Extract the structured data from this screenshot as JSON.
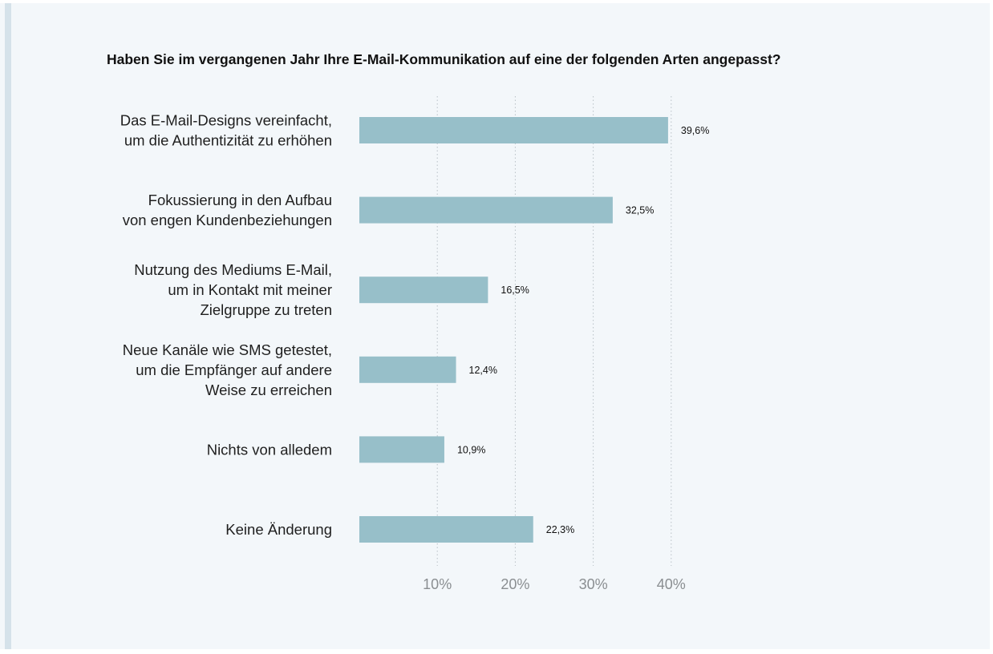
{
  "chart_data": {
    "type": "bar",
    "orientation": "horizontal",
    "title": "Haben Sie im vergangenen Jahr Ihre E-Mail-Kommunikation auf eine der folgenden Arten angepasst?",
    "categories": [
      [
        "Das E-Mail-Designs vereinfacht,",
        "um die Authentizität zu erhöhen"
      ],
      [
        "Fokussierung in den Aufbau",
        "von engen Kundenbeziehungen"
      ],
      [
        "Nutzung des Mediums E-Mail,",
        "um in Kontakt mit meiner",
        "Zielgruppe zu treten"
      ],
      [
        "Neue Kanäle wie SMS getestet,",
        "um die Empfänger auf andere",
        "Weise zu erreichen"
      ],
      [
        "Nichts von alledem"
      ],
      [
        "Keine Änderung"
      ]
    ],
    "values": [
      39.6,
      32.5,
      16.5,
      12.4,
      10.9,
      22.3
    ],
    "value_labels": [
      "39,6%",
      "32,5%",
      "16,5%",
      "12,4%",
      "10,9%",
      "22,3%"
    ],
    "xlim": [
      0,
      40
    ],
    "xticks": [
      10,
      20,
      30,
      40
    ],
    "xtick_labels": [
      "10%",
      "20%",
      "30%",
      "40%"
    ],
    "grid": "vertical dotted",
    "legend": "none",
    "colors": {
      "bar": "#97bfc9",
      "background": "#f3f7fa",
      "grid": "#b8c0c6",
      "tick_text": "#8a8e91"
    }
  }
}
